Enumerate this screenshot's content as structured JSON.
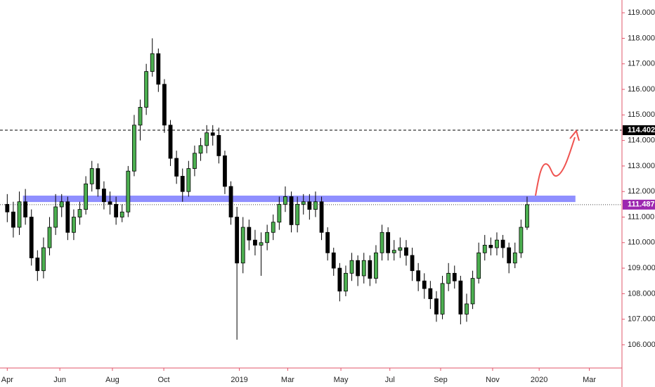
{
  "chart_data": {
    "type": "candlestick",
    "xlim": [
      -1.2,
      101.7
    ],
    "ylim": [
      105.09,
      119.5
    ],
    "xticks": [
      {
        "value": 0,
        "label": "Apr"
      },
      {
        "value": 8.7,
        "label": "Jun"
      },
      {
        "value": 17.4,
        "label": "Aug"
      },
      {
        "value": 25.9,
        "label": "Oct"
      },
      {
        "value": 38.4,
        "label": "2019"
      },
      {
        "value": 46.4,
        "label": "Mar"
      },
      {
        "value": 55.2,
        "label": "May"
      },
      {
        "value": 63.3,
        "label": "Jul"
      },
      {
        "value": 71.7,
        "label": "Sep"
      },
      {
        "value": 80.3,
        "label": "Nov"
      },
      {
        "value": 88.0,
        "label": "2020"
      },
      {
        "value": 96.3,
        "label": "Mar"
      }
    ],
    "yticks": [
      {
        "value": 106,
        "label": "106.000"
      },
      {
        "value": 107,
        "label": "107.000"
      },
      {
        "value": 108,
        "label": "108.000"
      },
      {
        "value": 109,
        "label": "109.000"
      },
      {
        "value": 110,
        "label": "110.000"
      },
      {
        "value": 111,
        "label": "111.000"
      },
      {
        "value": 112,
        "label": "112.000"
      },
      {
        "value": 113,
        "label": "113.000"
      },
      {
        "value": 114,
        "label": "114.000"
      },
      {
        "value": 115,
        "label": "115.000"
      },
      {
        "value": 116,
        "label": "116.000"
      },
      {
        "value": 117,
        "label": "117.000"
      },
      {
        "value": 118,
        "label": "118.000"
      },
      {
        "value": 119,
        "label": "119.000"
      }
    ],
    "up_color": "#4caf50",
    "down_color": "#000000",
    "x": [
      0,
      1,
      2,
      3,
      4,
      5,
      6,
      7,
      8,
      9,
      10,
      11,
      12,
      13,
      14,
      15,
      16,
      17,
      18,
      19,
      20,
      21,
      22,
      23,
      24,
      25,
      26,
      27,
      28,
      29,
      30,
      31,
      32,
      33,
      34,
      35,
      36,
      37,
      38,
      39,
      40,
      41,
      42,
      43,
      44,
      45,
      46,
      47,
      48,
      49,
      50,
      51,
      52,
      53,
      54,
      55,
      56,
      57,
      58,
      59,
      60,
      61,
      62,
      63,
      64,
      65,
      66,
      67,
      68,
      69,
      70,
      71,
      72,
      73,
      74,
      75,
      76,
      77,
      78,
      79,
      80,
      81,
      82,
      83,
      84,
      85,
      86
    ],
    "open": [
      111.5,
      111.2,
      110.6,
      111.6,
      111.0,
      109.4,
      108.9,
      109.8,
      110.6,
      111.4,
      111.6,
      110.4,
      111.0,
      111.3,
      112.3,
      112.9,
      112.1,
      111.6,
      111.5,
      111.0,
      111.2,
      112.8,
      114.6,
      115.3,
      116.7,
      117.4,
      116.2,
      114.6,
      113.3,
      112.6,
      112.0,
      112.9,
      113.5,
      113.8,
      114.3,
      114.2,
      113.4,
      112.2,
      111.0,
      109.2,
      110.6,
      110.1,
      109.9,
      110.0,
      110.4,
      110.8,
      111.5,
      111.8,
      110.7,
      111.5,
      111.6,
      111.3,
      111.6,
      110.4,
      109.6,
      109.0,
      108.1,
      108.8,
      109.3,
      108.7,
      109.3,
      108.6,
      109.6,
      110.4,
      109.6,
      109.7,
      109.8,
      109.5,
      108.9,
      108.5,
      108.2,
      107.8,
      107.2,
      108.4,
      108.8,
      108.5,
      107.2,
      107.6,
      108.6,
      109.6,
      109.9,
      109.8,
      110.1,
      109.8,
      109.2,
      109.6,
      110.6
    ],
    "high": [
      111.9,
      111.6,
      112.0,
      112.1,
      111.3,
      109.7,
      110.2,
      111.0,
      111.9,
      111.9,
      111.8,
      111.3,
      111.6,
      112.6,
      113.2,
      113.1,
      112.4,
      112.0,
      111.8,
      111.5,
      113.0,
      115.0,
      115.6,
      117.0,
      118.0,
      117.6,
      116.4,
      114.8,
      113.6,
      112.9,
      113.2,
      113.8,
      114.1,
      114.6,
      114.6,
      114.5,
      113.6,
      112.4,
      111.4,
      111.0,
      110.9,
      110.5,
      110.4,
      110.7,
      111.1,
      111.8,
      112.2,
      112.0,
      111.8,
      111.9,
      111.9,
      112.0,
      111.8,
      110.6,
      109.8,
      109.2,
      109.1,
      109.6,
      109.5,
      109.6,
      109.5,
      109.9,
      110.7,
      110.6,
      110.1,
      110.2,
      110.1,
      109.8,
      109.2,
      108.8,
      108.5,
      108.1,
      108.7,
      109.2,
      109.1,
      108.7,
      108.0,
      108.9,
      110.0,
      110.3,
      110.2,
      110.4,
      110.3,
      110.0,
      110.0,
      110.9,
      111.8
    ],
    "low": [
      110.8,
      110.2,
      110.3,
      110.7,
      109.1,
      108.5,
      108.6,
      109.5,
      110.3,
      111.0,
      110.1,
      110.1,
      110.7,
      111.1,
      112.0,
      111.8,
      111.3,
      111.1,
      110.7,
      110.8,
      111.0,
      112.6,
      114.0,
      115.0,
      116.5,
      115.9,
      114.3,
      113.0,
      112.3,
      111.6,
      111.8,
      112.6,
      113.2,
      113.5,
      113.8,
      113.1,
      111.9,
      110.7,
      106.2,
      108.8,
      109.7,
      109.5,
      108.7,
      109.7,
      110.1,
      110.5,
      111.2,
      110.4,
      110.4,
      111.1,
      110.9,
      111.0,
      110.1,
      109.3,
      108.7,
      107.7,
      107.9,
      108.5,
      108.3,
      108.4,
      108.3,
      108.4,
      109.3,
      109.3,
      109.3,
      109.4,
      109.1,
      108.5,
      108.1,
      107.8,
      107.4,
      106.9,
      107.0,
      108.1,
      108.2,
      106.8,
      106.9,
      107.4,
      108.4,
      109.3,
      109.5,
      109.5,
      109.4,
      108.8,
      109.0,
      109.4,
      110.5
    ],
    "close": [
      111.2,
      110.6,
      111.6,
      111.0,
      109.4,
      108.9,
      109.8,
      110.6,
      111.4,
      111.6,
      110.4,
      111.0,
      111.3,
      112.3,
      112.9,
      112.1,
      111.6,
      111.5,
      111.0,
      111.2,
      112.8,
      114.6,
      115.3,
      116.7,
      117.4,
      116.2,
      114.6,
      113.3,
      112.6,
      112.0,
      112.9,
      113.5,
      113.8,
      114.3,
      114.2,
      113.4,
      112.2,
      111.0,
      109.2,
      110.6,
      110.1,
      109.9,
      110.0,
      110.4,
      110.8,
      111.5,
      111.8,
      110.7,
      111.5,
      111.6,
      111.3,
      111.6,
      110.4,
      109.6,
      109.0,
      108.1,
      108.8,
      109.3,
      108.7,
      109.3,
      108.6,
      109.6,
      110.4,
      109.6,
      109.7,
      109.8,
      109.5,
      108.9,
      108.5,
      108.2,
      107.8,
      107.2,
      108.4,
      108.8,
      108.5,
      107.2,
      107.6,
      108.6,
      109.6,
      109.9,
      109.8,
      110.1,
      109.8,
      109.2,
      109.6,
      110.6,
      111.487
    ],
    "zone": {
      "low": 111.59,
      "high": 111.84,
      "from": 2.6,
      "to": 94.0,
      "color": "#7b7bff"
    },
    "level": {
      "value": 114.402,
      "color": "#000000"
    },
    "last_price": {
      "value": 111.487,
      "color": "#9c27b0"
    }
  }
}
